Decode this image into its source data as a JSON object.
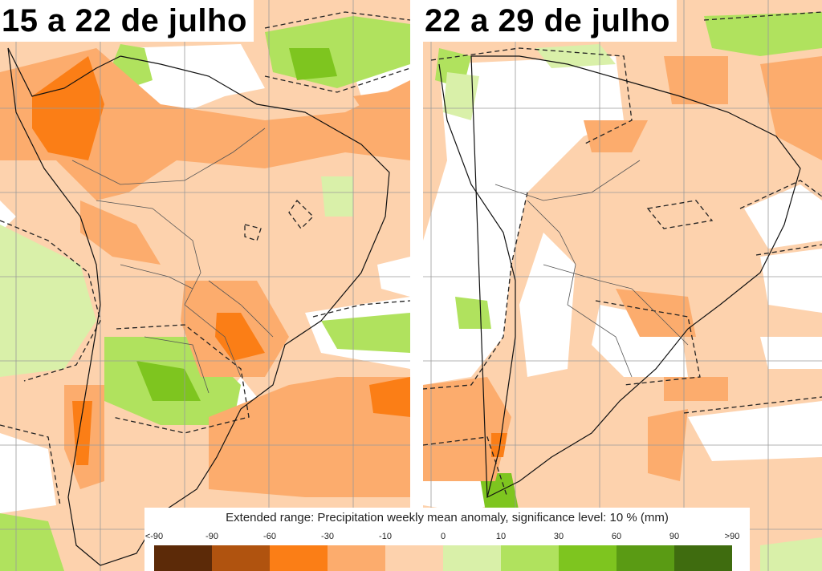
{
  "panels": [
    {
      "title": "15 a 22 de julho"
    },
    {
      "title": "22 a 29 de julho"
    }
  ],
  "legend": {
    "title": "Extended range: Precipitation weekly mean anomaly, significance level: 10 % (mm)",
    "ticks": [
      "<-90",
      "-90",
      "-60",
      "-30",
      "-10",
      "0",
      "10",
      "30",
      "60",
      "90",
      ">90"
    ],
    "colors": [
      "#5c2a08",
      "#b0530f",
      "#fb7e16",
      "#fcac6d",
      "#fdd2ad",
      "#d9f0a9",
      "#b0e25e",
      "#7ec51f",
      "#5a9b14",
      "#3f6c0f"
    ]
  },
  "map_colors": {
    "ocean_neutral": "#ffffff",
    "dry_light": "#fdd2ad",
    "dry_mid": "#fcac6d",
    "dry_strong": "#fb7e16",
    "wet_light": "#d9f0a9",
    "wet_mid": "#b0e25e",
    "wet_strong": "#7ec51f",
    "grid": "#9a9a9a",
    "coast": "#111111"
  }
}
